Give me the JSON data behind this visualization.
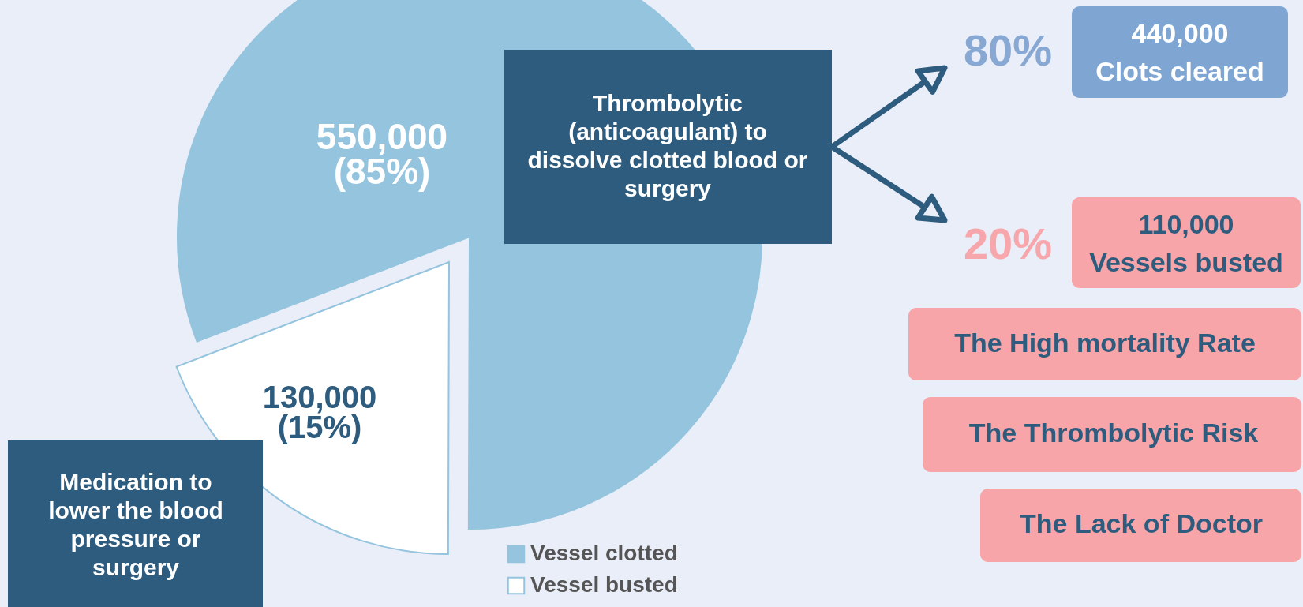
{
  "chart_data": {
    "type": "pie",
    "categories": [
      "Vessel clotted",
      "Vessel busted"
    ],
    "values": [
      550000,
      130000
    ],
    "colors": [
      "#94c4de",
      "#ffffff"
    ],
    "value_labels": [
      "550,000\n(85%)",
      "130,000\n(15%)"
    ],
    "legend": "bottom",
    "annotations": [
      "Thrombolytic\n(anticoagulant) to\ndissolve clotted blood or\nsurgery",
      "Medication to\nlower the blood\npressure or\nsurgery",
      "80%",
      "440,000\nClots cleared",
      "20%",
      "110,000\nVessels busted",
      "The High mortality Rate",
      "The Thrombolytic Risk",
      "The Lack of Doctor"
    ]
  }
}
